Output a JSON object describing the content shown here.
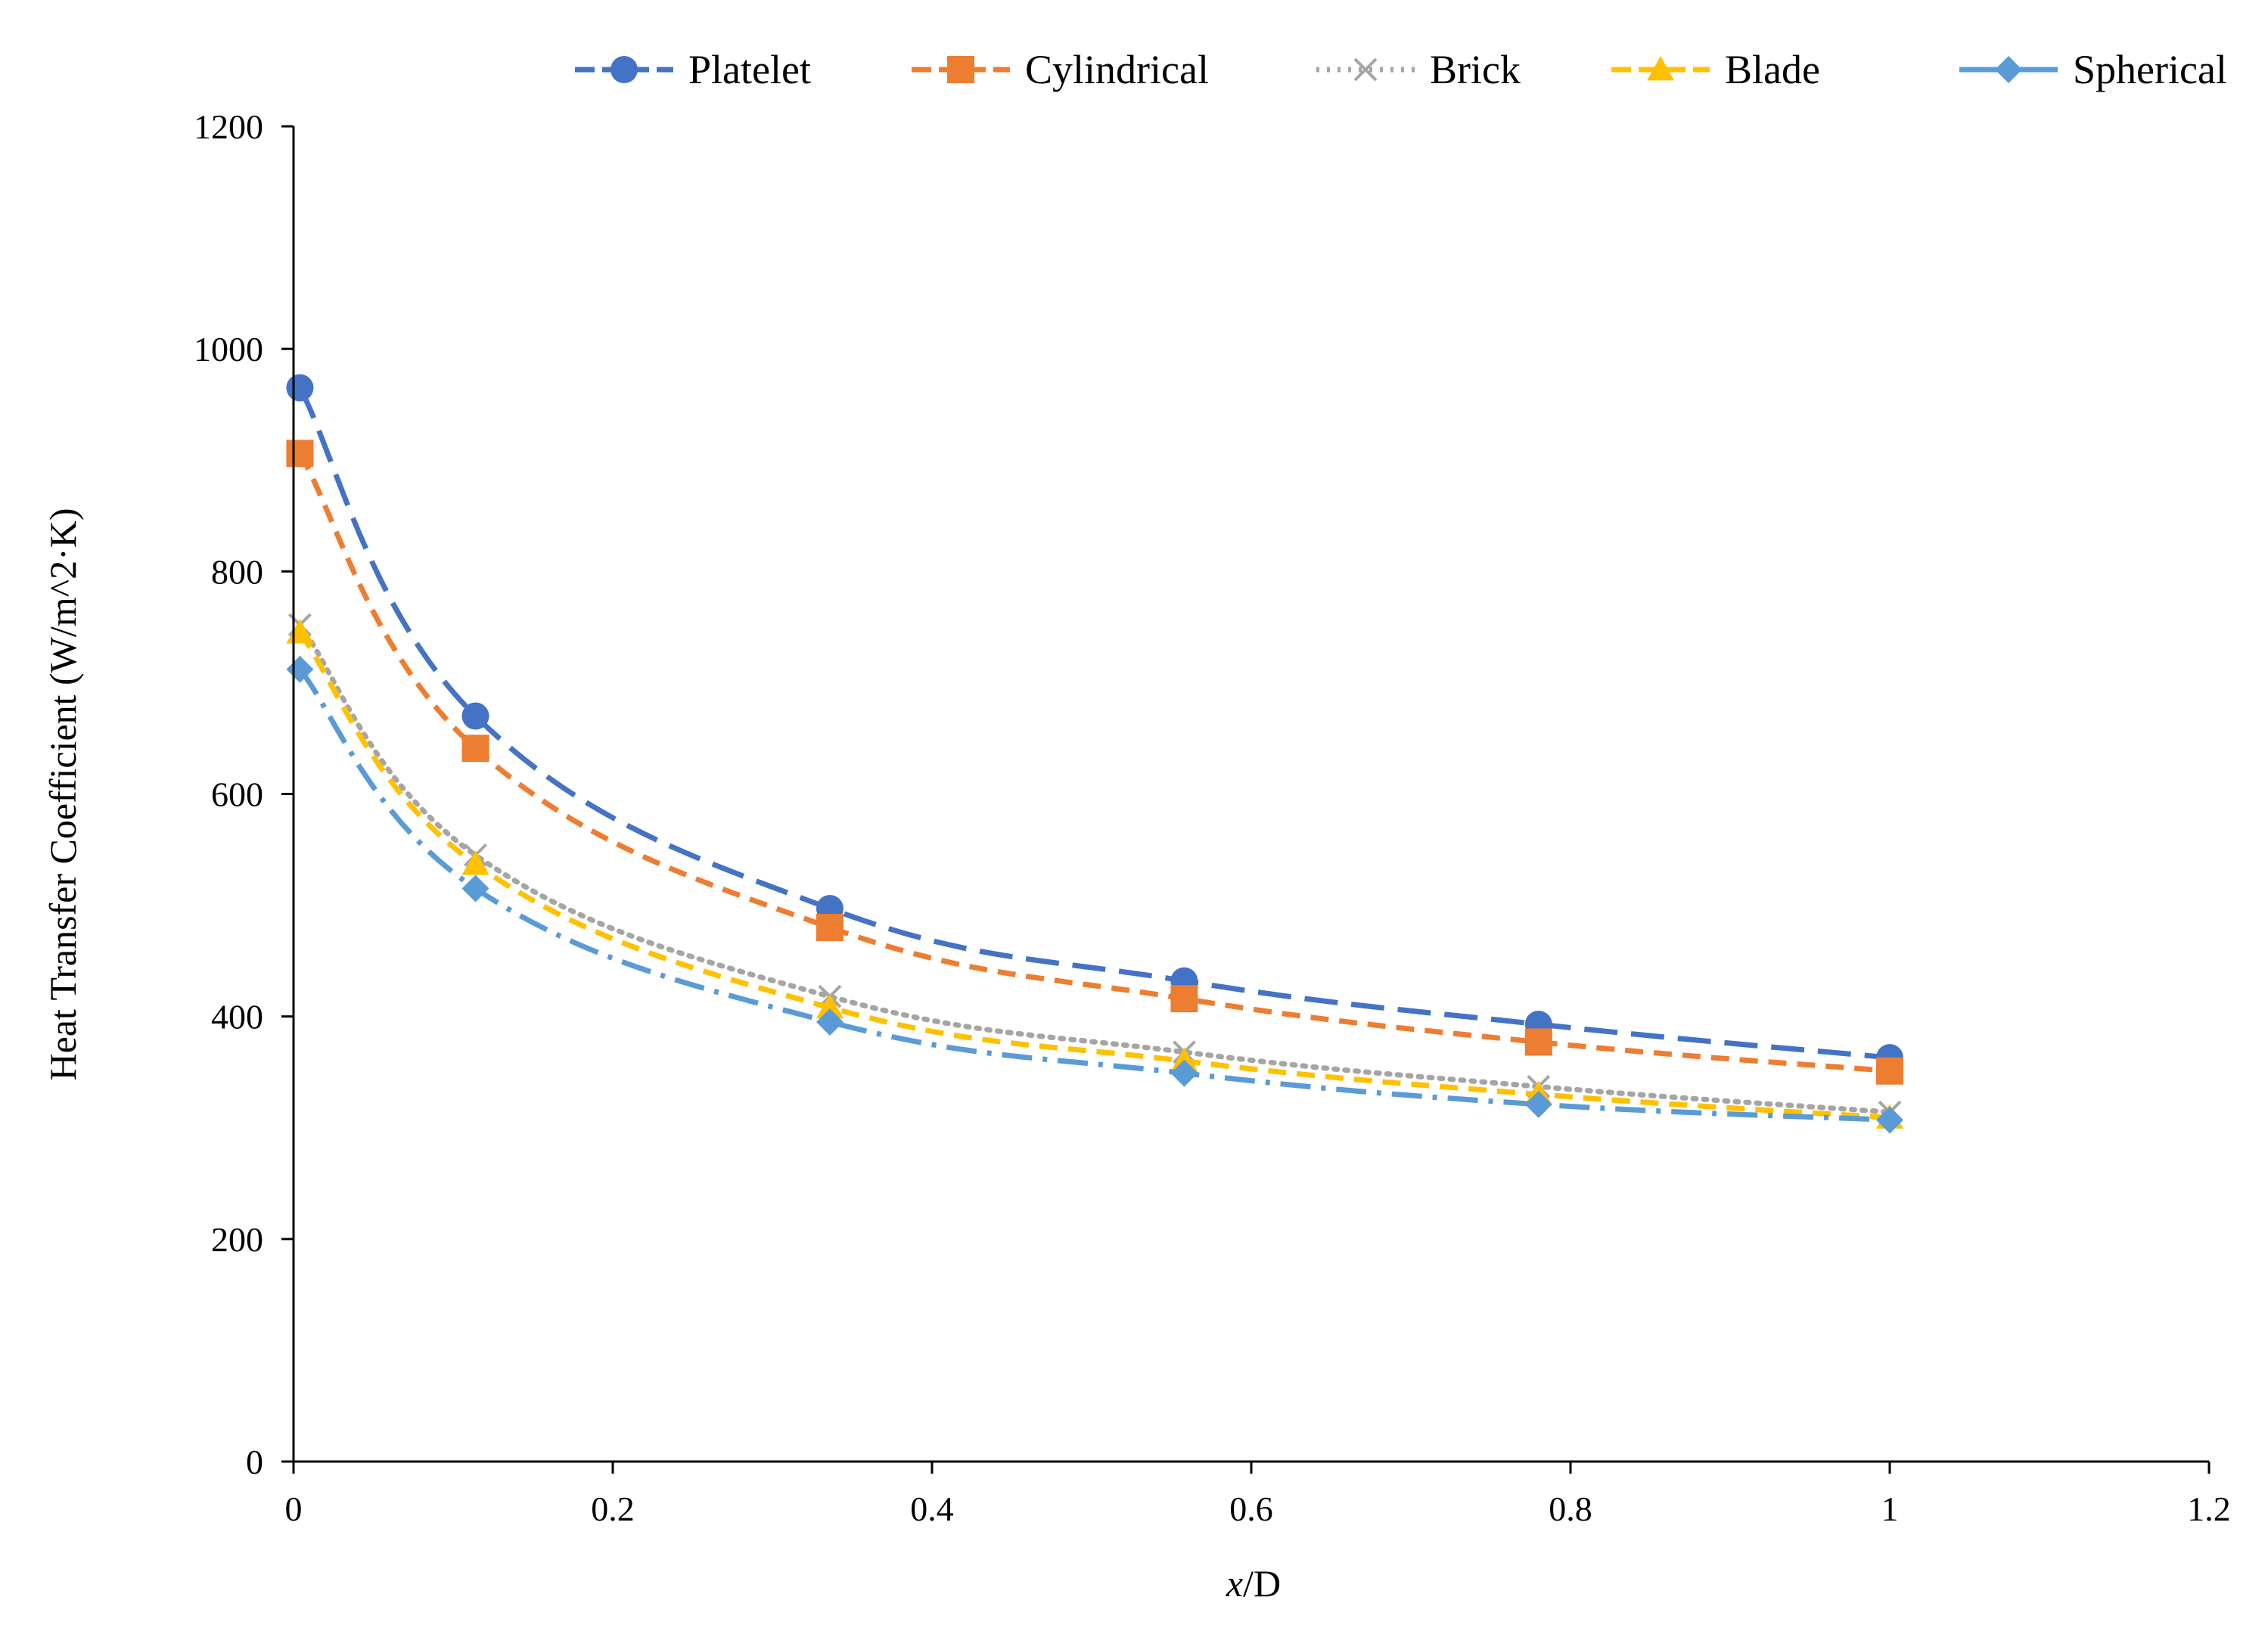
{
  "chart_data": {
    "type": "line",
    "title": "",
    "xlabel": {
      "italic": "x",
      "rest": "/D"
    },
    "ylabel": "Heat Transfer Coefficient (W/m^2·K)",
    "xlim": [
      0,
      1.2
    ],
    "ylim": [
      0,
      1200
    ],
    "xticks": [
      0,
      0.2,
      0.4,
      0.6,
      0.8,
      1,
      1.2
    ],
    "xtick_labels": [
      "0",
      "0.2",
      "0.4",
      "0.6",
      "0.8",
      "1",
      "1.2"
    ],
    "yticks": [
      0,
      200,
      400,
      600,
      800,
      1000,
      1200
    ],
    "ytick_labels": [
      "0",
      "200",
      "400",
      "600",
      "800",
      "1000",
      "1200"
    ],
    "grid": false,
    "legend_position": "top",
    "x": [
      0.004,
      0.114,
      0.336,
      0.558,
      0.78,
      1.0
    ],
    "series": [
      {
        "name": "Platelet",
        "values": [
          965,
          670,
          497,
          432,
          393,
          363
        ],
        "color": "#4472C4",
        "marker": "circle",
        "dash": "dashed-long"
      },
      {
        "name": "Cylindrical",
        "values": [
          906,
          641,
          480,
          416,
          377,
          351
        ],
        "color": "#ED7D31",
        "marker": "square",
        "dash": "dashed"
      },
      {
        "name": "Brick",
        "values": [
          752,
          545,
          418,
          368,
          337,
          314
        ],
        "color": "#A5A5A5",
        "marker": "x",
        "dash": "dotted"
      },
      {
        "name": "Blade",
        "values": [
          745,
          537,
          408,
          360,
          330,
          309
        ],
        "color": "#FFC000",
        "marker": "triangle",
        "dash": "dashed"
      },
      {
        "name": "Spherical",
        "values": [
          712,
          515,
          395,
          349,
          321,
          307
        ],
        "color": "#5B9BD5",
        "marker": "diamond",
        "dash": "dash-dot"
      }
    ]
  }
}
